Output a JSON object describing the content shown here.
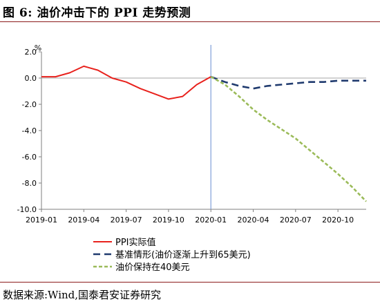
{
  "title": "图  6:  油价冲击下的 PPI 走势预测",
  "source": "数据来源:Wind,国泰君安证券研究",
  "chart_data": {
    "type": "line",
    "ylabel": "%",
    "ylim": [
      -10,
      2
    ],
    "yticks": [
      2,
      0,
      -2,
      -4,
      -6,
      -8,
      -10
    ],
    "ytick_labels": [
      "2.0",
      "0.0",
      "-2.0",
      "-4.0",
      "-6.0",
      "-8.0",
      "-10.0"
    ],
    "x": [
      "2019-01",
      "2019-02",
      "2019-03",
      "2019-04",
      "2019-05",
      "2019-06",
      "2019-07",
      "2019-08",
      "2019-09",
      "2019-10",
      "2019-11",
      "2019-12",
      "2020-01",
      "2020-02",
      "2020-03",
      "2020-04",
      "2020-05",
      "2020-06",
      "2020-07",
      "2020-08",
      "2020-09",
      "2020-10",
      "2020-11",
      "2020-12"
    ],
    "xtick_labels": [
      "2019-01",
      "2019-04",
      "2019-07",
      "2019-10",
      "2020-01",
      "2020-04",
      "2020-07",
      "2020-10"
    ],
    "vline_at": "2020-01",
    "grid": false,
    "legend_position": "bottom",
    "series": [
      {
        "name": "PPI实际值",
        "color": "#e8211c",
        "dash": "solid",
        "values": [
          0.1,
          0.1,
          0.4,
          0.9,
          0.6,
          0.0,
          -0.3,
          -0.8,
          -1.2,
          -1.6,
          -1.4,
          -0.5,
          0.1,
          null,
          null,
          null,
          null,
          null,
          null,
          null,
          null,
          null,
          null,
          null
        ]
      },
      {
        "name": "基准情形(油价逐渐上升到65美元)",
        "color": "#1f3a6e",
        "dash": "long-dash",
        "values": [
          null,
          null,
          null,
          null,
          null,
          null,
          null,
          null,
          null,
          null,
          null,
          null,
          0.1,
          -0.3,
          -0.6,
          -0.8,
          -0.6,
          -0.5,
          -0.4,
          -0.3,
          -0.3,
          -0.2,
          -0.2,
          -0.2
        ]
      },
      {
        "name": "油价保持在40美元",
        "color": "#9bbb59",
        "dash": "short-dash",
        "values": [
          null,
          null,
          null,
          null,
          null,
          null,
          null,
          null,
          null,
          null,
          null,
          null,
          0.1,
          -0.5,
          -1.4,
          -2.4,
          -3.2,
          -3.9,
          -4.6,
          -5.5,
          -6.4,
          -7.3,
          -8.3,
          -9.4
        ]
      }
    ]
  }
}
